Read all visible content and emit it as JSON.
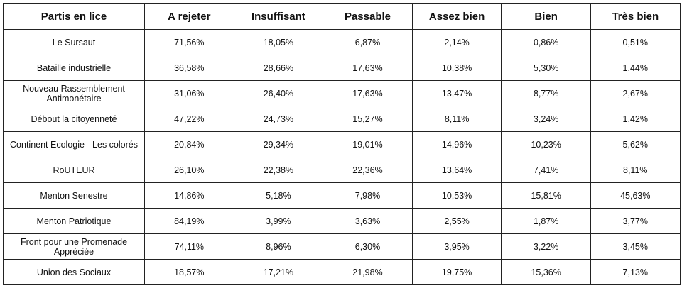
{
  "table": {
    "headers": [
      "Partis en lice",
      "A rejeter",
      "Insuffisant",
      "Passable",
      "Assez bien",
      "Bien",
      "Très bien"
    ],
    "rows": [
      {
        "party": "Le Sursaut",
        "values": [
          "71,56%",
          "18,05%",
          "6,87%",
          "2,14%",
          "0,86%",
          "0,51%"
        ]
      },
      {
        "party": "Bataille industrielle",
        "values": [
          "36,58%",
          "28,66%",
          "17,63%",
          "10,38%",
          "5,30%",
          "1,44%"
        ]
      },
      {
        "party": "Nouveau Rassemblement Antimonétaire",
        "values": [
          "31,06%",
          "26,40%",
          "17,63%",
          "13,47%",
          "8,77%",
          "2,67%"
        ]
      },
      {
        "party": "Débout la citoyenneté",
        "values": [
          "47,22%",
          "24,73%",
          "15,27%",
          "8,11%",
          "3,24%",
          "1,42%"
        ]
      },
      {
        "party": "Continent Ecologie - Les colorés",
        "values": [
          "20,84%",
          "29,34%",
          "19,01%",
          "14,96%",
          "10,23%",
          "5,62%"
        ]
      },
      {
        "party": "RoUTEUR",
        "values": [
          "26,10%",
          "22,38%",
          "22,36%",
          "13,64%",
          "7,41%",
          "8,11%"
        ]
      },
      {
        "party": "Menton Senestre",
        "values": [
          "14,86%",
          "5,18%",
          "7,98%",
          "10,53%",
          "15,81%",
          "45,63%"
        ]
      },
      {
        "party": "Menton Patriotique",
        "values": [
          "84,19%",
          "3,99%",
          "3,63%",
          "2,55%",
          "1,87%",
          "3,77%"
        ]
      },
      {
        "party": "Front pour une Promenade Appréciée",
        "values": [
          "74,11%",
          "8,96%",
          "6,30%",
          "3,95%",
          "3,22%",
          "3,45%"
        ]
      },
      {
        "party": "Union des Sociaux",
        "values": [
          "18,57%",
          "17,21%",
          "21,98%",
          "19,75%",
          "15,36%",
          "7,13%"
        ]
      }
    ]
  }
}
